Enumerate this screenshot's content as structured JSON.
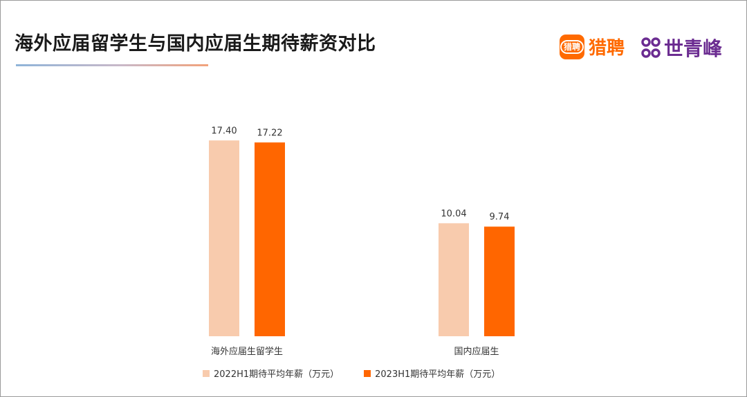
{
  "header": {
    "title": "海外应届留学生与国内应届生期待薪资对比",
    "logo_liepin_badge": "猎聘",
    "logo_liepin_name": "猎聘",
    "logo_sqf_name": "世青峰"
  },
  "colors": {
    "series_2022": "#f8cbad",
    "series_2023": "#ff6600",
    "liepin_brand": "#ff6a00",
    "sqf_brand": "#6b2c91"
  },
  "chart_data": {
    "type": "bar",
    "title": "海外应届留学生与国内应届生期待薪资对比",
    "categories": [
      "海外应届生留学生",
      "国内应届生"
    ],
    "series": [
      {
        "name": "2022H1期待平均年薪（万元）",
        "values": [
          17.4,
          10.04
        ],
        "labels": [
          "17.40",
          "10.04"
        ]
      },
      {
        "name": "2023H1期待平均年薪（万元）",
        "values": [
          17.22,
          9.74
        ],
        "labels": [
          "17.22",
          "9.74"
        ]
      }
    ],
    "ylim": [
      0,
      20
    ],
    "grid": false,
    "legend_position": "bottom"
  }
}
